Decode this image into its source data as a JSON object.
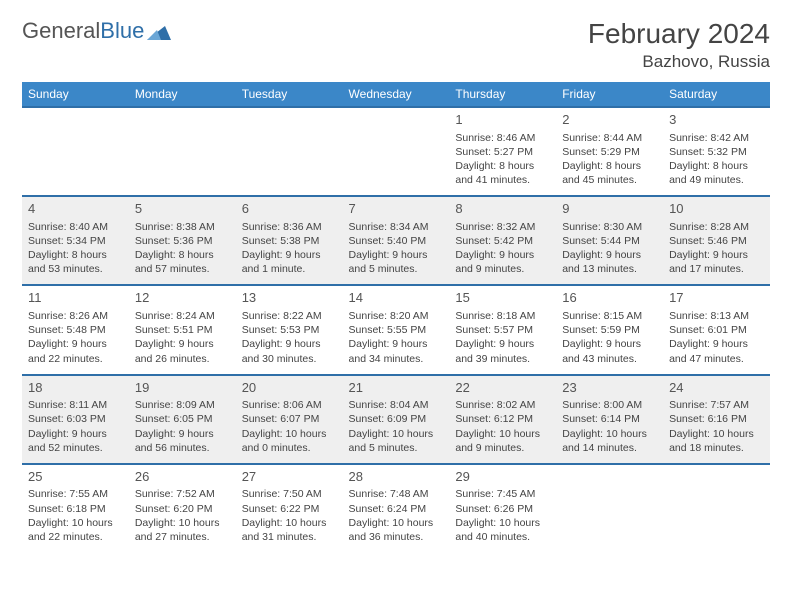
{
  "brand": {
    "part1": "General",
    "part2": "Blue"
  },
  "title": "February 2024",
  "location": "Bazhovo, Russia",
  "colors": {
    "header_bg": "#3b87c8",
    "header_text": "#ffffff",
    "row_border": "#2f6fa8",
    "alt_row_bg": "#efefef",
    "text": "#444444",
    "brand_blue": "#2f6fa8"
  },
  "weekdays": [
    "Sunday",
    "Monday",
    "Tuesday",
    "Wednesday",
    "Thursday",
    "Friday",
    "Saturday"
  ],
  "weeks": [
    [
      null,
      null,
      null,
      null,
      {
        "d": "1",
        "sr": "Sunrise: 8:46 AM",
        "ss": "Sunset: 5:27 PM",
        "dl": "Daylight: 8 hours and 41 minutes."
      },
      {
        "d": "2",
        "sr": "Sunrise: 8:44 AM",
        "ss": "Sunset: 5:29 PM",
        "dl": "Daylight: 8 hours and 45 minutes."
      },
      {
        "d": "3",
        "sr": "Sunrise: 8:42 AM",
        "ss": "Sunset: 5:32 PM",
        "dl": "Daylight: 8 hours and 49 minutes."
      }
    ],
    [
      {
        "d": "4",
        "sr": "Sunrise: 8:40 AM",
        "ss": "Sunset: 5:34 PM",
        "dl": "Daylight: 8 hours and 53 minutes."
      },
      {
        "d": "5",
        "sr": "Sunrise: 8:38 AM",
        "ss": "Sunset: 5:36 PM",
        "dl": "Daylight: 8 hours and 57 minutes."
      },
      {
        "d": "6",
        "sr": "Sunrise: 8:36 AM",
        "ss": "Sunset: 5:38 PM",
        "dl": "Daylight: 9 hours and 1 minute."
      },
      {
        "d": "7",
        "sr": "Sunrise: 8:34 AM",
        "ss": "Sunset: 5:40 PM",
        "dl": "Daylight: 9 hours and 5 minutes."
      },
      {
        "d": "8",
        "sr": "Sunrise: 8:32 AM",
        "ss": "Sunset: 5:42 PM",
        "dl": "Daylight: 9 hours and 9 minutes."
      },
      {
        "d": "9",
        "sr": "Sunrise: 8:30 AM",
        "ss": "Sunset: 5:44 PM",
        "dl": "Daylight: 9 hours and 13 minutes."
      },
      {
        "d": "10",
        "sr": "Sunrise: 8:28 AM",
        "ss": "Sunset: 5:46 PM",
        "dl": "Daylight: 9 hours and 17 minutes."
      }
    ],
    [
      {
        "d": "11",
        "sr": "Sunrise: 8:26 AM",
        "ss": "Sunset: 5:48 PM",
        "dl": "Daylight: 9 hours and 22 minutes."
      },
      {
        "d": "12",
        "sr": "Sunrise: 8:24 AM",
        "ss": "Sunset: 5:51 PM",
        "dl": "Daylight: 9 hours and 26 minutes."
      },
      {
        "d": "13",
        "sr": "Sunrise: 8:22 AM",
        "ss": "Sunset: 5:53 PM",
        "dl": "Daylight: 9 hours and 30 minutes."
      },
      {
        "d": "14",
        "sr": "Sunrise: 8:20 AM",
        "ss": "Sunset: 5:55 PM",
        "dl": "Daylight: 9 hours and 34 minutes."
      },
      {
        "d": "15",
        "sr": "Sunrise: 8:18 AM",
        "ss": "Sunset: 5:57 PM",
        "dl": "Daylight: 9 hours and 39 minutes."
      },
      {
        "d": "16",
        "sr": "Sunrise: 8:15 AM",
        "ss": "Sunset: 5:59 PM",
        "dl": "Daylight: 9 hours and 43 minutes."
      },
      {
        "d": "17",
        "sr": "Sunrise: 8:13 AM",
        "ss": "Sunset: 6:01 PM",
        "dl": "Daylight: 9 hours and 47 minutes."
      }
    ],
    [
      {
        "d": "18",
        "sr": "Sunrise: 8:11 AM",
        "ss": "Sunset: 6:03 PM",
        "dl": "Daylight: 9 hours and 52 minutes."
      },
      {
        "d": "19",
        "sr": "Sunrise: 8:09 AM",
        "ss": "Sunset: 6:05 PM",
        "dl": "Daylight: 9 hours and 56 minutes."
      },
      {
        "d": "20",
        "sr": "Sunrise: 8:06 AM",
        "ss": "Sunset: 6:07 PM",
        "dl": "Daylight: 10 hours and 0 minutes."
      },
      {
        "d": "21",
        "sr": "Sunrise: 8:04 AM",
        "ss": "Sunset: 6:09 PM",
        "dl": "Daylight: 10 hours and 5 minutes."
      },
      {
        "d": "22",
        "sr": "Sunrise: 8:02 AM",
        "ss": "Sunset: 6:12 PM",
        "dl": "Daylight: 10 hours and 9 minutes."
      },
      {
        "d": "23",
        "sr": "Sunrise: 8:00 AM",
        "ss": "Sunset: 6:14 PM",
        "dl": "Daylight: 10 hours and 14 minutes."
      },
      {
        "d": "24",
        "sr": "Sunrise: 7:57 AM",
        "ss": "Sunset: 6:16 PM",
        "dl": "Daylight: 10 hours and 18 minutes."
      }
    ],
    [
      {
        "d": "25",
        "sr": "Sunrise: 7:55 AM",
        "ss": "Sunset: 6:18 PM",
        "dl": "Daylight: 10 hours and 22 minutes."
      },
      {
        "d": "26",
        "sr": "Sunrise: 7:52 AM",
        "ss": "Sunset: 6:20 PM",
        "dl": "Daylight: 10 hours and 27 minutes."
      },
      {
        "d": "27",
        "sr": "Sunrise: 7:50 AM",
        "ss": "Sunset: 6:22 PM",
        "dl": "Daylight: 10 hours and 31 minutes."
      },
      {
        "d": "28",
        "sr": "Sunrise: 7:48 AM",
        "ss": "Sunset: 6:24 PM",
        "dl": "Daylight: 10 hours and 36 minutes."
      },
      {
        "d": "29",
        "sr": "Sunrise: 7:45 AM",
        "ss": "Sunset: 6:26 PM",
        "dl": "Daylight: 10 hours and 40 minutes."
      },
      null,
      null
    ]
  ]
}
